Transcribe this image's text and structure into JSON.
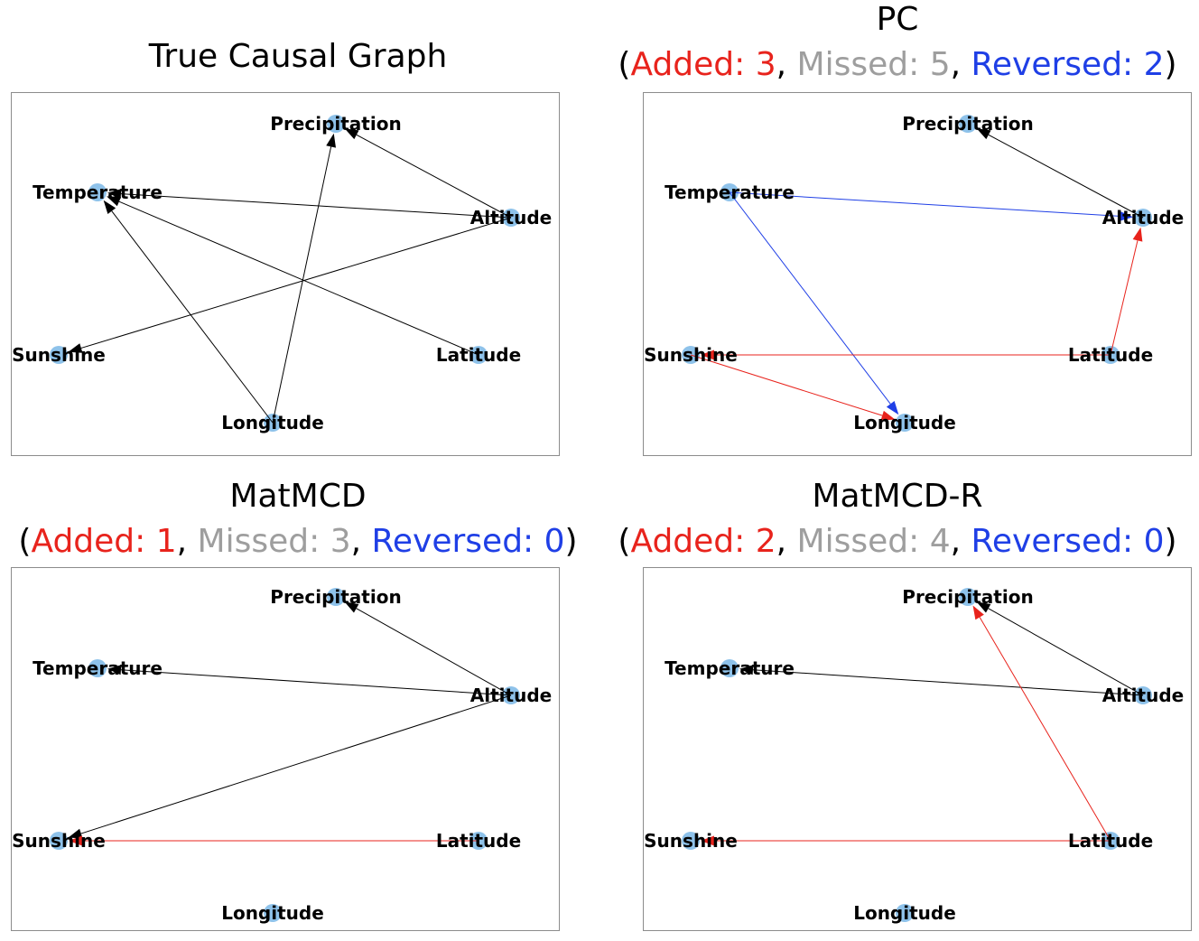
{
  "nodes": [
    "Precipitation",
    "Temperature",
    "Altitude",
    "Sunshine",
    "Latitude",
    "Longitude"
  ],
  "colors": {
    "node": "#8ec2ea",
    "correct": "#000000",
    "added": "#e8231c",
    "reversed": "#1f3fe6",
    "missed": "#9e9e9e"
  },
  "panels": [
    {
      "id": "true",
      "title": "True Causal Graph",
      "layout": "A",
      "edges": [
        {
          "from": "Altitude",
          "to": "Precipitation",
          "type": "correct"
        },
        {
          "from": "Longitude",
          "to": "Precipitation",
          "type": "correct"
        },
        {
          "from": "Altitude",
          "to": "Temperature",
          "type": "correct"
        },
        {
          "from": "Latitude",
          "to": "Temperature",
          "type": "correct"
        },
        {
          "from": "Longitude",
          "to": "Temperature",
          "type": "correct"
        },
        {
          "from": "Altitude",
          "to": "Sunshine",
          "type": "correct"
        }
      ]
    },
    {
      "id": "pc",
      "title": "PC",
      "stats": {
        "added_label": "Added",
        "added": "3",
        "missed_label": "Missed",
        "missed": "5",
        "reversed_label": "Reversed",
        "reversed": "2"
      },
      "layout": "A",
      "edges": [
        {
          "from": "Altitude",
          "to": "Precipitation",
          "type": "correct"
        },
        {
          "from": "Temperature",
          "to": "Altitude",
          "type": "reversed"
        },
        {
          "from": "Temperature",
          "to": "Longitude",
          "type": "reversed"
        },
        {
          "from": "Latitude",
          "to": "Altitude",
          "type": "added"
        },
        {
          "from": "Sunshine",
          "to": "Longitude",
          "type": "added"
        },
        {
          "from": "Latitude",
          "to": "Sunshine",
          "type": "added"
        }
      ]
    },
    {
      "id": "matmcd",
      "title": "MatMCD",
      "stats": {
        "added_label": "Added",
        "added": "1",
        "missed_label": "Missed",
        "missed": "3",
        "reversed_label": "Reversed",
        "reversed": "0"
      },
      "layout": "B",
      "edges": [
        {
          "from": "Altitude",
          "to": "Precipitation",
          "type": "correct"
        },
        {
          "from": "Altitude",
          "to": "Temperature",
          "type": "correct"
        },
        {
          "from": "Altitude",
          "to": "Sunshine",
          "type": "correct"
        },
        {
          "from": "Latitude",
          "to": "Sunshine",
          "type": "added"
        }
      ]
    },
    {
      "id": "matmcd-r",
      "title": "MatMCD-R",
      "stats": {
        "added_label": "Added",
        "added": "2",
        "missed_label": "Missed",
        "missed": "4",
        "reversed_label": "Reversed",
        "reversed": "0"
      },
      "layout": "B",
      "edges": [
        {
          "from": "Altitude",
          "to": "Precipitation",
          "type": "correct"
        },
        {
          "from": "Altitude",
          "to": "Temperature",
          "type": "correct"
        },
        {
          "from": "Latitude",
          "to": "Precipitation",
          "type": "added"
        },
        {
          "from": "Latitude",
          "to": "Sunshine",
          "type": "added"
        }
      ]
    }
  ]
}
